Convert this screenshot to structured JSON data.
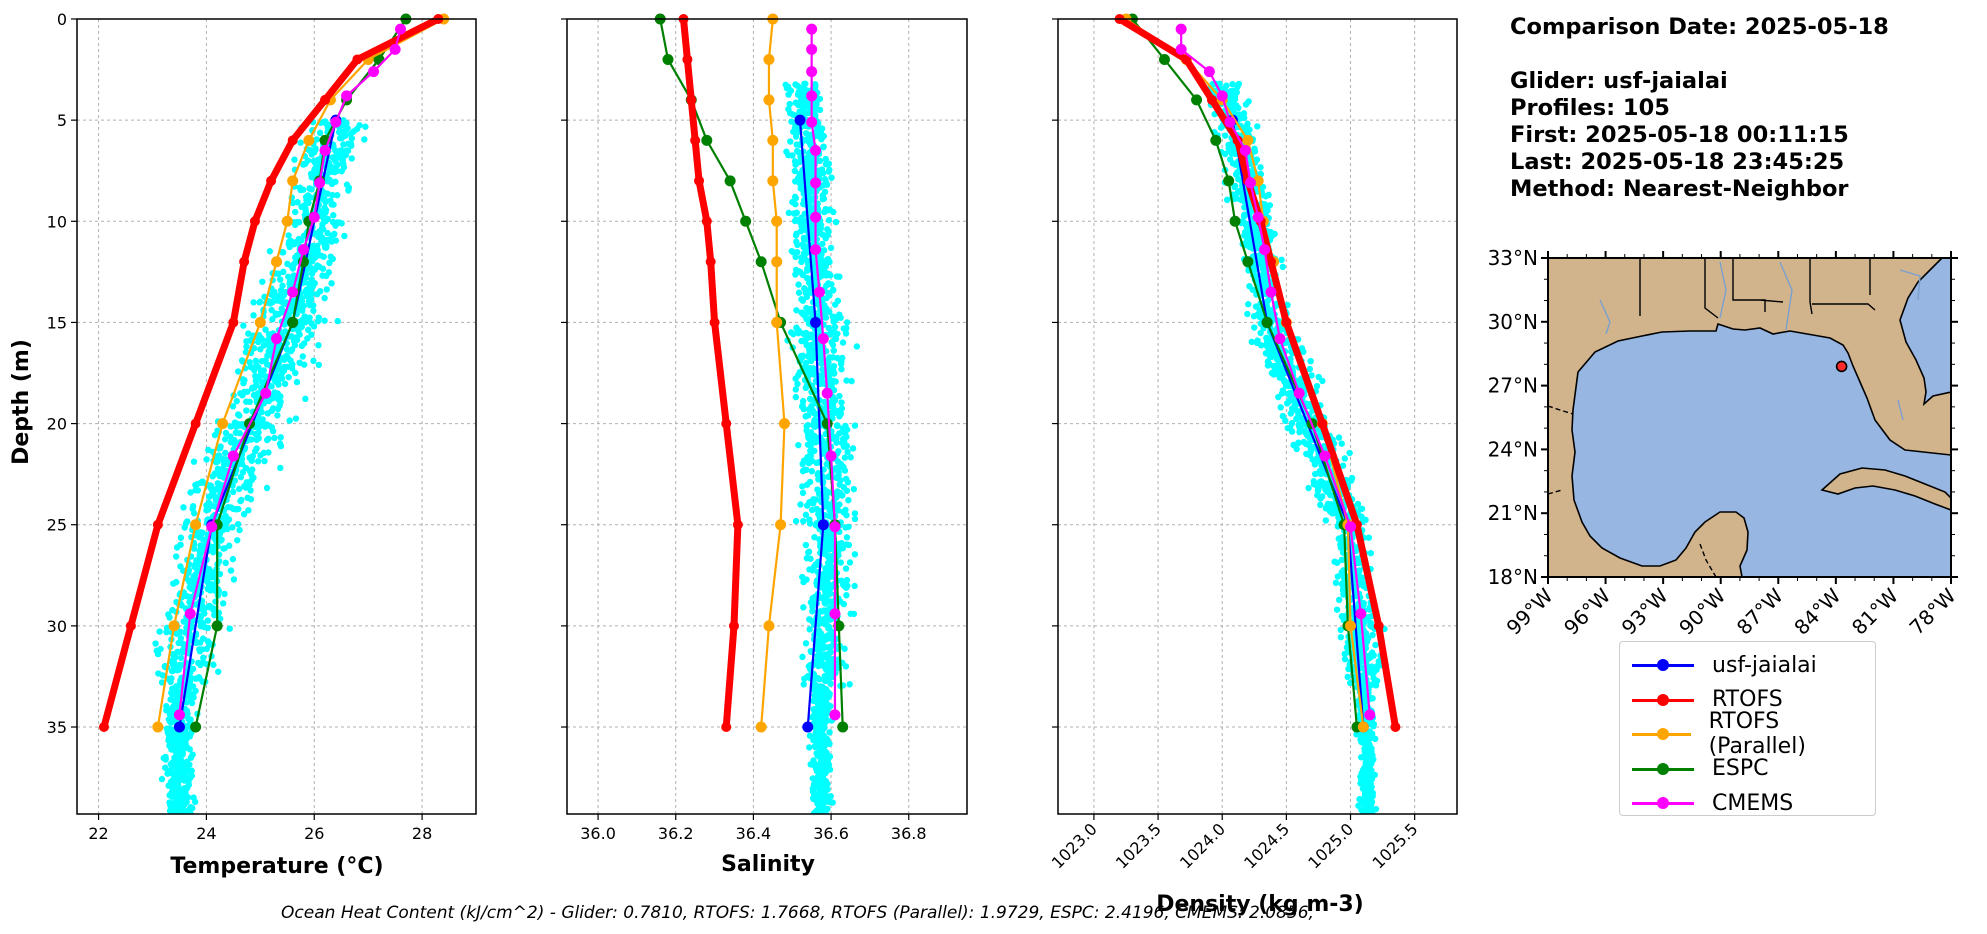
{
  "info": {
    "comparison_date": "Comparison Date: 2025-05-18",
    "glider": "Glider: usf-jaialai",
    "profiles": "Profiles: 105",
    "first": "First: 2025-05-18 00:11:15",
    "last": "Last: 2025-05-18 23:45:25",
    "method": "Method: Nearest-Neighbor"
  },
  "footer": "Ocean Heat Content (kJ/cm^2) - Glider: 0.7810,  RTOFS: 1.7668,  RTOFS (Parallel): 1.9729,  ESPC: 2.4196,  CMEMS: 2.0856,",
  "colors": {
    "glider": "#0000ff",
    "rtofs": "#ff0000",
    "rtofs_parallel": "#ffa500",
    "espc": "#008000",
    "cmems": "#ff00ff",
    "scatter": "#00ffff"
  },
  "legend": [
    {
      "label": "usf-jaialai",
      "color": "#0000ff"
    },
    {
      "label": "RTOFS",
      "color": "#ff0000"
    },
    {
      "label": "RTOFS (Parallel)",
      "color": "#ffa500"
    },
    {
      "label": "ESPC",
      "color": "#008000"
    },
    {
      "label": "CMEMS",
      "color": "#ff00ff"
    }
  ],
  "chart_data": [
    {
      "type": "line",
      "xlabel": "Temperature (°C)",
      "ylabel": "Depth (m)",
      "xlim": [
        21.6,
        29.0
      ],
      "ylim": [
        39.3,
        0
      ],
      "xticks": [
        22,
        24,
        26,
        28
      ],
      "yticks": [
        0,
        5,
        10,
        15,
        20,
        25,
        30,
        35
      ],
      "grid": true,
      "series": [
        {
          "name": "usf-jaialai",
          "depth": [
            5,
            15,
            25,
            35
          ],
          "values": [
            26.4,
            25.6,
            24.1,
            23.5
          ]
        },
        {
          "name": "RTOFS",
          "depth": [
            0,
            2,
            4,
            6,
            8,
            10,
            12,
            15,
            20,
            25,
            30,
            35
          ],
          "values": [
            28.3,
            26.8,
            26.2,
            25.6,
            25.2,
            24.9,
            24.7,
            24.5,
            23.8,
            23.1,
            22.6,
            22.1
          ]
        },
        {
          "name": "RTOFS (Parallel)",
          "depth": [
            0,
            2,
            4,
            6,
            8,
            10,
            12,
            15,
            20,
            25,
            30,
            35
          ],
          "values": [
            28.4,
            27.0,
            26.3,
            25.9,
            25.6,
            25.5,
            25.3,
            25.0,
            24.3,
            23.8,
            23.4,
            23.1
          ]
        },
        {
          "name": "ESPC",
          "depth": [
            0,
            2,
            4,
            6,
            8,
            10,
            12,
            15,
            20,
            25,
            30,
            35
          ],
          "values": [
            27.7,
            27.2,
            26.6,
            26.2,
            26.1,
            25.9,
            25.8,
            25.6,
            24.8,
            24.2,
            24.2,
            23.8
          ]
        },
        {
          "name": "CMEMS",
          "depth": [
            0.5,
            1.5,
            2.6,
            3.8,
            5.1,
            6.5,
            8.1,
            9.8,
            11.4,
            13.5,
            15.8,
            18.5,
            21.6,
            25.1,
            29.4,
            34.4
          ],
          "values": [
            27.6,
            27.5,
            27.1,
            26.6,
            26.4,
            26.2,
            26.1,
            26.0,
            25.8,
            25.6,
            25.3,
            25.1,
            24.5,
            24.1,
            23.7,
            23.5
          ]
        }
      ]
    },
    {
      "type": "line",
      "xlabel": "Salinity",
      "xlim": [
        35.92,
        36.95
      ],
      "ylim": [
        39.3,
        0
      ],
      "xticks": [
        "36.0",
        "36.2",
        "36.4",
        "36.6",
        "36.8"
      ],
      "grid": true,
      "series": [
        {
          "name": "usf-jaialai",
          "depth": [
            5,
            15,
            25,
            35
          ],
          "values": [
            36.52,
            36.56,
            36.58,
            36.54
          ]
        },
        {
          "name": "RTOFS",
          "depth": [
            0,
            2,
            4,
            6,
            8,
            10,
            12,
            15,
            20,
            25,
            30,
            35
          ],
          "values": [
            36.22,
            36.23,
            36.24,
            36.25,
            36.26,
            36.28,
            36.29,
            36.3,
            36.33,
            36.36,
            36.35,
            36.33
          ]
        },
        {
          "name": "RTOFS (Parallel)",
          "depth": [
            0,
            2,
            4,
            6,
            8,
            10,
            12,
            15,
            20,
            25,
            30,
            35
          ],
          "values": [
            36.45,
            36.44,
            36.44,
            36.45,
            36.45,
            36.46,
            36.46,
            36.46,
            36.48,
            36.47,
            36.44,
            36.42
          ]
        },
        {
          "name": "ESPC",
          "depth": [
            0,
            2,
            4,
            6,
            8,
            10,
            12,
            15,
            20,
            25,
            30,
            35
          ],
          "values": [
            36.16,
            36.18,
            36.24,
            36.28,
            36.34,
            36.38,
            36.42,
            36.47,
            36.59,
            36.61,
            36.62,
            36.63
          ]
        },
        {
          "name": "CMEMS",
          "depth": [
            0.5,
            1.5,
            2.6,
            3.8,
            5.1,
            6.5,
            8.1,
            9.8,
            11.4,
            13.5,
            15.8,
            18.5,
            21.6,
            25.1,
            29.4,
            34.4
          ],
          "values": [
            36.55,
            36.55,
            36.55,
            36.55,
            36.55,
            36.56,
            36.56,
            36.56,
            36.56,
            36.57,
            36.58,
            36.59,
            36.6,
            36.61,
            36.61,
            36.61
          ]
        }
      ]
    },
    {
      "type": "line",
      "xlabel": "Density (kg m-3)",
      "xlim": [
        1022.72,
        1025.83
      ],
      "ylim": [
        39.3,
        0
      ],
      "xticks": [
        "1023.0",
        "1023.5",
        "1024.0",
        "1024.5",
        "1025.0",
        "1025.5"
      ],
      "grid": true,
      "series": [
        {
          "name": "usf-jaialai",
          "depth": [
            5,
            15,
            25,
            35
          ],
          "values": [
            1024.08,
            1024.35,
            1024.98,
            1025.1
          ]
        },
        {
          "name": "RTOFS",
          "depth": [
            0,
            2,
            4,
            6,
            8,
            10,
            12,
            15,
            20,
            25,
            30,
            35
          ],
          "values": [
            1023.2,
            1023.72,
            1023.92,
            1024.12,
            1024.2,
            1024.3,
            1024.38,
            1024.5,
            1024.78,
            1025.05,
            1025.22,
            1025.35
          ]
        },
        {
          "name": "RTOFS (Parallel)",
          "depth": [
            0,
            2,
            4,
            6,
            8,
            10,
            12,
            15,
            20,
            25,
            30,
            35
          ],
          "values": [
            1023.25,
            1023.72,
            1024.0,
            1024.2,
            1024.28,
            1024.32,
            1024.4,
            1024.5,
            1024.78,
            1024.98,
            1025.0,
            1025.1
          ]
        },
        {
          "name": "ESPC",
          "depth": [
            0,
            2,
            4,
            6,
            8,
            10,
            12,
            15,
            20,
            25,
            30,
            35
          ],
          "values": [
            1023.3,
            1023.55,
            1023.8,
            1023.95,
            1024.05,
            1024.1,
            1024.2,
            1024.35,
            1024.7,
            1024.95,
            1024.98,
            1025.05
          ]
        },
        {
          "name": "CMEMS",
          "depth": [
            0.5,
            1.5,
            2.6,
            3.8,
            5.1,
            6.5,
            8.1,
            9.8,
            11.4,
            13.5,
            15.8,
            18.5,
            21.6,
            25.1,
            29.4,
            34.4
          ],
          "values": [
            1023.68,
            1023.68,
            1023.9,
            1024.0,
            1024.06,
            1024.18,
            1024.22,
            1024.28,
            1024.33,
            1024.38,
            1024.45,
            1024.6,
            1024.8,
            1025.0,
            1025.08,
            1025.15
          ]
        }
      ]
    }
  ],
  "map": {
    "lat_labels": [
      "33°N",
      "30°N",
      "27°N",
      "24°N",
      "21°N",
      "18°N"
    ],
    "lon_labels": [
      "99°W",
      "96°W",
      "93°W",
      "90°W",
      "87°W",
      "84°W",
      "81°W",
      "78°W"
    ],
    "glider_location": {
      "lon": -83.7,
      "lat": 27.9
    },
    "land_color": "#d2b48c",
    "ocean_color": "#97b6e1"
  }
}
